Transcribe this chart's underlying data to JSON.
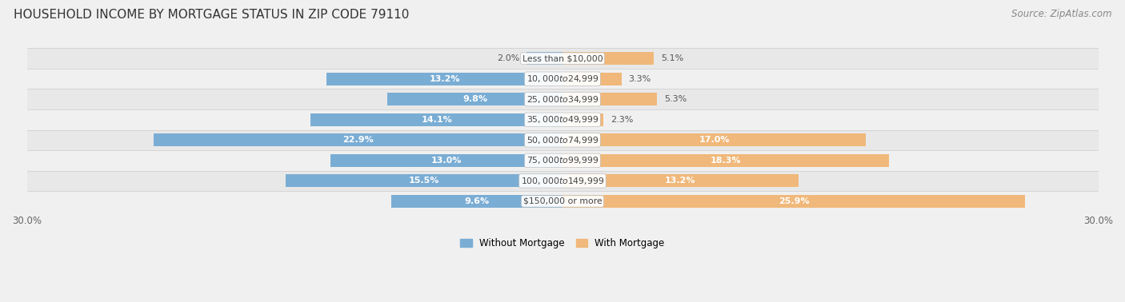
{
  "title": "HOUSEHOLD INCOME BY MORTGAGE STATUS IN ZIP CODE 79110",
  "source": "Source: ZipAtlas.com",
  "categories": [
    "Less than $10,000",
    "$10,000 to $24,999",
    "$25,000 to $34,999",
    "$35,000 to $49,999",
    "$50,000 to $74,999",
    "$75,000 to $99,999",
    "$100,000 to $149,999",
    "$150,000 or more"
  ],
  "without_mortgage": [
    2.0,
    13.2,
    9.8,
    14.1,
    22.9,
    13.0,
    15.5,
    9.6
  ],
  "with_mortgage": [
    5.1,
    3.3,
    5.3,
    2.3,
    17.0,
    18.3,
    13.2,
    25.9
  ],
  "color_without": "#7aadd4",
  "color_with": "#f0b87a",
  "xlim": 30.0,
  "title_fontsize": 11,
  "bar_fontsize": 8,
  "axis_label_fontsize": 8.5,
  "source_fontsize": 8.5,
  "legend_fontsize": 8.5
}
